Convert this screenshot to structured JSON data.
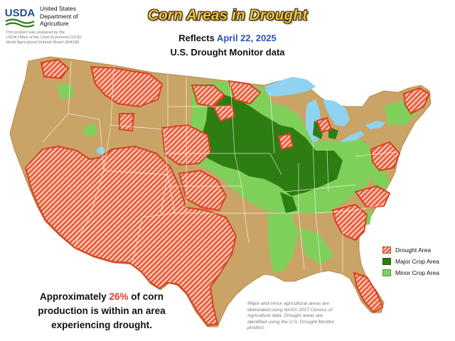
{
  "agency": {
    "logo_text": "USDA",
    "line1": "United States",
    "line2": "Department of",
    "line3": "Agriculture",
    "prepared_line1": "This product was prepared by the",
    "prepared_line2": "USDA Office of the Chief Economist (OCE)",
    "prepared_line3": "World Agricultural Outlook Board (WAOB)"
  },
  "title": "Corn Areas in Drought",
  "subtitle": {
    "reflects": "Reflects",
    "date": "April 22, 2025",
    "source": "U.S. Drought Monitor data"
  },
  "legend": {
    "items": [
      {
        "label": "Drought Area",
        "color": "#e8573a"
      },
      {
        "label": "Major Crop Area",
        "color": "#2e7d13"
      },
      {
        "label": "Minor Crop Area",
        "color": "#7fd05a"
      }
    ]
  },
  "summary": {
    "part1": "Approximately",
    "percent": "26%",
    "part2": "of corn",
    "line2": "production is within an area",
    "line3": "experiencing drought."
  },
  "notes": {
    "line1": "Major and minor agricultural areas are",
    "line2": "delineated using NASS 2017 Census of",
    "line3": "Agriculture data.  Drought areas are",
    "line4": "identified using the U.S. Drought Monitor",
    "line5": "product."
  },
  "colors": {
    "land": "#c9a466",
    "water": "#8fd3f0",
    "drought": "#e8573a",
    "major_crop": "#2e7d13",
    "minor_crop": "#7fd05a",
    "title": "#f0c53a",
    "date": "#2d52b3",
    "percent": "#e23b2b"
  }
}
